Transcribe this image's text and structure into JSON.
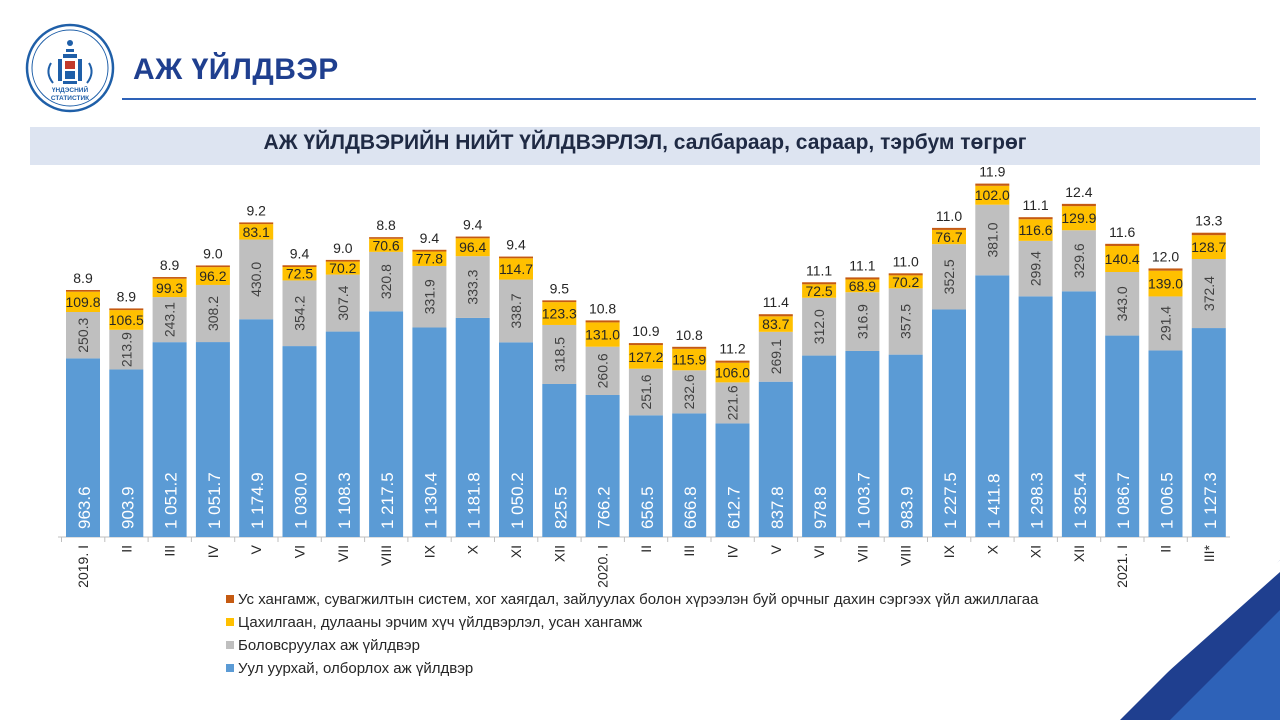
{
  "header": {
    "logo_text": "ҮНДЭСНИЙ СТАТИСТИК",
    "page_title": "АЖ ҮЙЛДВЭР"
  },
  "colors": {
    "mining": "#5b9bd5",
    "manufacturing": "#bfbfbf",
    "electricity": "#ffc000",
    "water": "#c55a11",
    "brand": "#1f3f8f"
  },
  "chart_data": {
    "type": "bar",
    "stacked": true,
    "title": "АЖ ҮЙЛДВЭРИЙН НИЙТ ҮЙЛДВЭРЛЭЛ, салбараар, сараар, тэрбум төгрөг",
    "categories": [
      "2019. I",
      "II",
      "III",
      "IV",
      "V",
      "VI",
      "VII",
      "VIII",
      "IX",
      "X",
      "XI",
      "XII",
      "2020. I",
      "II",
      "III",
      "IV",
      "V",
      "VI",
      "VII",
      "VIII",
      "IX",
      "X",
      "XI",
      "XII",
      "2021. I",
      "II",
      "III*"
    ],
    "series": [
      {
        "name": "Уул уурхай, олборлох аж үйлдвэр",
        "color": "#5b9bd5",
        "values": [
          963.6,
          903.9,
          1051.2,
          1051.7,
          1174.9,
          1030.0,
          1108.3,
          1217.5,
          1130.4,
          1181.8,
          1050.2,
          825.5,
          766.2,
          656.5,
          666.8,
          612.7,
          837.8,
          978.8,
          1003.7,
          983.9,
          1227.5,
          1411.8,
          1298.3,
          1325.4,
          1086.7,
          1006.5,
          1127.3
        ],
        "labels": [
          "963.6",
          "903.9",
          "1 051.2",
          "1 051.7",
          "1 174.9",
          "1 030.0",
          "1 108.3",
          "1 217.5",
          "1 130.4",
          "1 181.8",
          "1 050.2",
          "825.5",
          "766.2",
          "656.5",
          "666.8",
          "612.7",
          "837.8",
          "978.8",
          "1 003.7",
          "983.9",
          "1 227.5",
          "1 411.8",
          "1 298.3",
          "1 325.4",
          "1 086.7",
          "1 006.5",
          "1 127.3"
        ]
      },
      {
        "name": "Боловсруулах аж үйлдвэр",
        "color": "#bfbfbf",
        "values": [
          250.3,
          213.9,
          243.1,
          308.2,
          430.0,
          354.2,
          307.4,
          320.8,
          331.9,
          333.3,
          338.7,
          318.5,
          260.6,
          251.6,
          232.6,
          221.6,
          269.1,
          312.0,
          316.9,
          357.5,
          352.5,
          381.0,
          299.4,
          329.6,
          343.0,
          291.4,
          372.4
        ],
        "labels": [
          "250.3",
          "213.9",
          "243.1",
          "308.2",
          "430.0",
          "354.2",
          "307.4",
          "320.8",
          "331.9",
          "333.3",
          "338.7",
          "318.5",
          "260.6",
          "251.6",
          "232.6",
          "221.6",
          "269.1",
          "312.0",
          "316.9",
          "357.5",
          "352.5",
          "381.0",
          "299.4",
          "329.6",
          "343.0",
          "291.4",
          "372.4"
        ]
      },
      {
        "name": "Цахилгаан, дулааны эрчим хүч үйлдвэрлэл, усан хангамж",
        "color": "#ffc000",
        "values": [
          109.8,
          106.5,
          99.3,
          96.2,
          83.1,
          72.5,
          70.2,
          70.6,
          77.8,
          96.4,
          114.7,
          123.3,
          131.0,
          127.2,
          115.9,
          106.0,
          83.7,
          72.5,
          68.9,
          70.2,
          76.7,
          102.0,
          116.6,
          129.9,
          140.4,
          139.0,
          128.7
        ],
        "labels": [
          "109.8",
          "106.5",
          "99.3",
          "96.2",
          "83.1",
          "72.5",
          "70.2",
          "70.6",
          "77.8",
          "96.4",
          "114.7",
          "123.3",
          "131.0",
          "127.2",
          "115.9",
          "106.0",
          "83.7",
          "72.5",
          "68.9",
          "70.2",
          "76.7",
          "102.0",
          "116.6",
          "129.9",
          "140.4",
          "139.0",
          "128.7"
        ]
      },
      {
        "name": "Ус хангамж, сувагжилтын систем, хог хаягдал, зайлуулах болон хүрээлэн буй орчныг дахин сэргээх үйл ажиллагаа",
        "color": "#c55a11",
        "values": [
          8.9,
          8.9,
          8.9,
          9.0,
          9.2,
          9.4,
          9.0,
          8.8,
          9.4,
          9.4,
          9.4,
          9.5,
          10.8,
          10.9,
          10.8,
          11.2,
          11.4,
          11.1,
          11.1,
          11.0,
          11.0,
          11.9,
          11.1,
          12.4,
          11.6,
          12.0,
          13.3
        ],
        "labels": [
          "8.9",
          "8.9",
          "8.9",
          "9.0",
          "9.2",
          "9.4",
          "9.0",
          "8.8",
          "9.4",
          "9.4",
          "9.4",
          "9.5",
          "10.8",
          "10.9",
          "10.8",
          "11.2",
          "11.4",
          "11.1",
          "11.1",
          "11.0",
          "11.0",
          "11.9",
          "11.1",
          "12.4",
          "11.6",
          "12.0",
          "13.3"
        ]
      }
    ],
    "legend_order": [
      3,
      2,
      1,
      0
    ],
    "legend_position": "bottom",
    "ylim": [
      0,
      1980
    ],
    "grid": false
  }
}
